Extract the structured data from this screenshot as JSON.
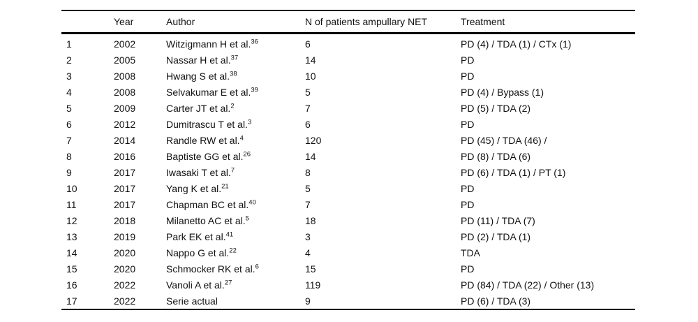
{
  "page": {
    "background": "#ffffff",
    "text_color": "#111111",
    "rule_color": "#000000"
  },
  "table": {
    "headers": [
      "",
      "Year",
      "Author",
      "N of patients ampullary NET",
      "Treatment"
    ],
    "rows": [
      {
        "index": "1",
        "year": "2002",
        "author": "Witzigmann H et al.",
        "ref": "36",
        "n": "6",
        "treatment": "PD (4) / TDA (1) / CTx (1)"
      },
      {
        "index": "2",
        "year": "2005",
        "author": "Nassar H et al.",
        "ref": "37",
        "n": "14",
        "treatment": "PD"
      },
      {
        "index": "3",
        "year": "2008",
        "author": "Hwang S et al.",
        "ref": "38",
        "n": "10",
        "treatment": "PD"
      },
      {
        "index": "4",
        "year": "2008",
        "author": "Selvakumar E et al.",
        "ref": "39",
        "n": "5",
        "treatment": "PD (4) / Bypass (1)"
      },
      {
        "index": "5",
        "year": "2009",
        "author": "Carter JT et al.",
        "ref": "2",
        "n": "7",
        "treatment": "PD (5) / TDA (2)"
      },
      {
        "index": "6",
        "year": "2012",
        "author": "Dumitrascu T et al.",
        "ref": "3",
        "n": "6",
        "treatment": "PD"
      },
      {
        "index": "7",
        "year": "2014",
        "author": "Randle RW et al.",
        "ref": "4",
        "n": "120",
        "treatment": "PD (45) / TDA (46) /"
      },
      {
        "index": "8",
        "year": "2016",
        "author": "Baptiste GG et al.",
        "ref": "26",
        "n": "14",
        "treatment": "PD (8) / TDA (6)"
      },
      {
        "index": "9",
        "year": "2017",
        "author": "Iwasaki T et al.",
        "ref": "7",
        "n": "8",
        "treatment": "PD (6) / TDA (1) / PT (1)"
      },
      {
        "index": "10",
        "year": "2017",
        "author": "Yang K et al.",
        "ref": "21",
        "n": "5",
        "treatment": "PD"
      },
      {
        "index": "11",
        "year": "2017",
        "author": "Chapman BC et al.",
        "ref": "40",
        "n": "7",
        "treatment": "PD"
      },
      {
        "index": "12",
        "year": "2018",
        "author": "Milanetto AC et al.",
        "ref": "5",
        "n": "18",
        "treatment": "PD (11) / TDA (7)"
      },
      {
        "index": "13",
        "year": "2019",
        "author": "Park EK et al.",
        "ref": "41",
        "n": "3",
        "treatment": "PD (2) / TDA (1)"
      },
      {
        "index": "14",
        "year": "2020",
        "author": "Nappo G et al.",
        "ref": "22",
        "n": "4",
        "treatment": "TDA"
      },
      {
        "index": "15",
        "year": "2020",
        "author": "Schmocker RK et al.",
        "ref": "6",
        "n": "15",
        "treatment": "PD"
      },
      {
        "index": "16",
        "year": "2022",
        "author": "Vanoli A et al.",
        "ref": "27",
        "n": "119",
        "treatment": "PD (84) / TDA (22) / Other (13)"
      },
      {
        "index": "17",
        "year": "2022",
        "author": "Serie actual",
        "ref": "",
        "n": "9",
        "treatment": "PD (6) / TDA (3)"
      }
    ]
  }
}
